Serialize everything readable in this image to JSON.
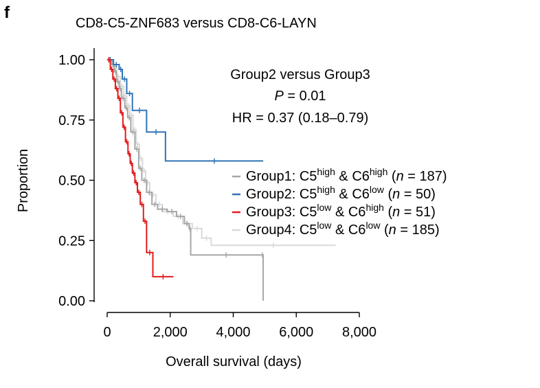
{
  "panel_label": "f",
  "chart_data": {
    "type": "line",
    "title": "CD8-C5-ZNF683 versus CD8-C6-LAYN",
    "xlabel": "Overall survival (days)",
    "ylabel": "Proportion",
    "xlim": [
      0,
      8000
    ],
    "ylim": [
      0,
      1
    ],
    "x_ticks": [
      "0",
      "2,000",
      "4,000",
      "6,000",
      "8,000"
    ],
    "x_tick_values": [
      0,
      2000,
      4000,
      6000,
      8000
    ],
    "y_ticks": [
      "0.00",
      "0.25",
      "0.50",
      "0.75",
      "1.00"
    ],
    "y_tick_values": [
      0,
      0.25,
      0.5,
      0.75,
      1.0
    ],
    "grid": false,
    "legend_position": "right",
    "annotation": {
      "line1": "Group2 versus Group3",
      "p_label": "P",
      "p_value": " = 0.01",
      "hr": "HR = 0.37 (0.18–0.79)"
    },
    "series": [
      {
        "name": "Group1: C5high & C6high (n = 187)",
        "legend": {
          "prefix": "Group1: C5",
          "sup1": "high",
          "mid": " & C6",
          "sup2": "high",
          "open": " (",
          "n": "n",
          "close": " = 187)"
        },
        "color": "#a6a6a6",
        "x": [
          0,
          150,
          230,
          300,
          380,
          450,
          560,
          650,
          750,
          880,
          1000,
          1100,
          1250,
          1420,
          1600,
          1900,
          2200,
          2450,
          2600,
          2650,
          4900,
          4950
        ],
        "y": [
          1.0,
          0.98,
          0.95,
          0.91,
          0.88,
          0.84,
          0.8,
          0.76,
          0.7,
          0.63,
          0.55,
          0.5,
          0.45,
          0.4,
          0.38,
          0.37,
          0.35,
          0.32,
          0.3,
          0.19,
          0.19,
          0.0
        ]
      },
      {
        "name": "Group2: C5high & C6low (n = 50)",
        "legend": {
          "prefix": "Group2: C5",
          "sup1": "high",
          "mid": " & C6",
          "sup2": "low",
          "open": " (",
          "n": "n",
          "close": " = 50)"
        },
        "color": "#2f74b5",
        "x": [
          0,
          200,
          380,
          480,
          620,
          800,
          1250,
          1850,
          4950
        ],
        "y": [
          1.0,
          0.98,
          0.96,
          0.92,
          0.86,
          0.79,
          0.7,
          0.58,
          0.58
        ]
      },
      {
        "name": "Group3: C5low & C6high (n = 51)",
        "legend": {
          "prefix": "Group3: C5",
          "sup1": "low",
          "mid": " & C6",
          "sup2": "high",
          "open": " (",
          "n": "n",
          "close": " = 51)"
        },
        "color": "#e31a1c",
        "x": [
          0,
          100,
          180,
          260,
          340,
          420,
          500,
          580,
          660,
          730,
          800,
          880,
          960,
          1050,
          1150,
          1250,
          1450,
          2100
        ],
        "y": [
          1.0,
          0.96,
          0.92,
          0.88,
          0.84,
          0.78,
          0.72,
          0.66,
          0.61,
          0.57,
          0.53,
          0.49,
          0.45,
          0.4,
          0.33,
          0.2,
          0.1,
          0.1
        ]
      },
      {
        "name": "Group4: C5low & C6low (n = 185)",
        "legend": {
          "prefix": "Group4: C5",
          "sup1": "low",
          "mid": " & C6",
          "sup2": "low",
          "open": " (",
          "n": "n",
          "close": " = 185)"
        },
        "color": "#d9d9d9",
        "x": [
          0,
          180,
          300,
          420,
          520,
          620,
          720,
          820,
          920,
          1020,
          1120,
          1220,
          1350,
          1550,
          1750,
          2100,
          2400,
          2700,
          3000,
          3300,
          7250
        ],
        "y": [
          1.0,
          0.97,
          0.93,
          0.89,
          0.85,
          0.81,
          0.77,
          0.71,
          0.65,
          0.59,
          0.54,
          0.49,
          0.44,
          0.4,
          0.37,
          0.35,
          0.32,
          0.3,
          0.26,
          0.23,
          0.23
        ]
      }
    ]
  }
}
